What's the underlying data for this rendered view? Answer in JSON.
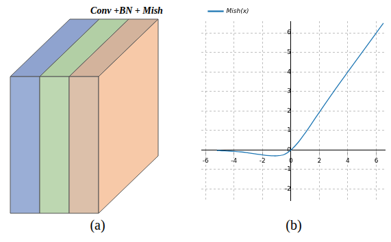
{
  "diagram": {
    "label": "Conv +BN + Mish",
    "caption": "(a)"
  },
  "chart_data": {
    "type": "line",
    "caption": "(b)",
    "series": [
      {
        "name": "Mish(x)",
        "color": "#1f77b4",
        "x": [
          -5.2,
          -5,
          -4.5,
          -4,
          -3.5,
          -3,
          -2.5,
          -2,
          -1.5,
          -1.2,
          -1,
          -0.5,
          0,
          0.5,
          1,
          1.5,
          2,
          3,
          4,
          5,
          6,
          6.5
        ],
        "values": [
          -0.03,
          -0.03,
          -0.05,
          -0.07,
          -0.1,
          -0.15,
          -0.2,
          -0.25,
          -0.29,
          -0.3,
          -0.3,
          -0.24,
          0,
          0.38,
          0.87,
          1.4,
          1.94,
          2.99,
          4,
          5,
          6,
          6.5
        ]
      }
    ],
    "xlim": [
      -6.3,
      6.6
    ],
    "xticks": [
      -6,
      -4,
      -2,
      0,
      2,
      4,
      6
    ],
    "ylim": [
      -2.6,
      6.6
    ],
    "yticks": [
      -2,
      -1,
      0,
      1,
      2,
      3,
      4,
      5,
      6
    ],
    "grid": true,
    "legend": "upper left"
  }
}
